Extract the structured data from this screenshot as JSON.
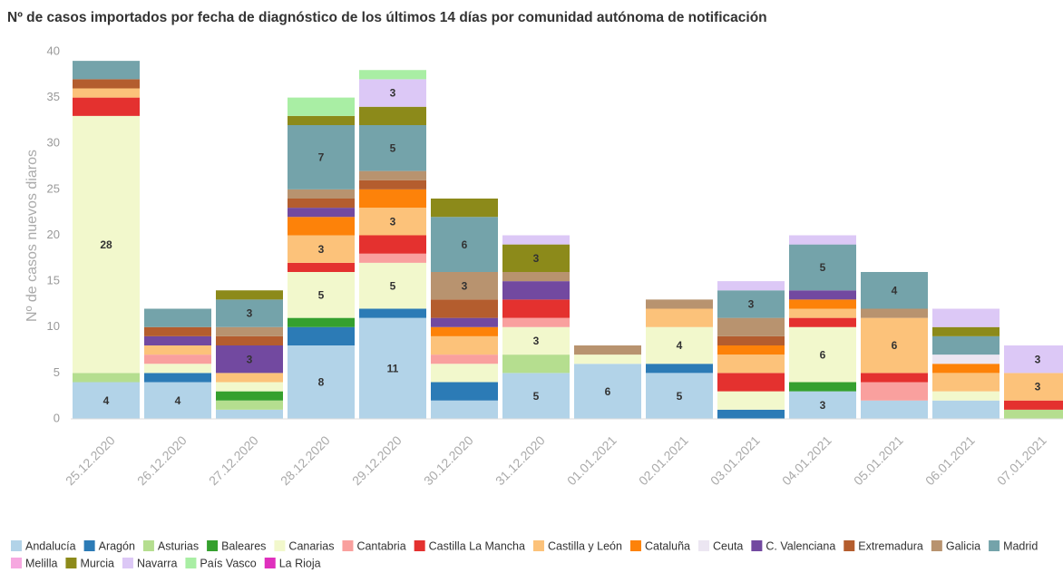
{
  "chart_data": {
    "type": "stacked_bar",
    "title": "Nº de casos importados por fecha de diagnóstico de los últimos 14 días por comunidad autónoma de notificación",
    "y_label": "Nº de casos nuevos diaros",
    "categories": [
      "25.12.2020",
      "26.12.2020",
      "27.12.2020",
      "28.12.2020",
      "29.12.2020",
      "30.12.2020",
      "31.12.2020",
      "01.01.2021",
      "02.01.2021",
      "03.01.2021",
      "04.01.2021",
      "05.01.2021",
      "06.01.2021",
      "07.01.2021"
    ],
    "ylim": [
      0,
      40
    ],
    "yticks": [
      0,
      5,
      10,
      15,
      20,
      25,
      30,
      35,
      40
    ],
    "grid": false,
    "legend": "bottom",
    "series": [
      {
        "name": "Andalucía",
        "color": "#b2d3e8",
        "values": [
          4,
          4,
          1,
          8,
          11,
          2,
          5,
          6,
          5,
          0,
          3,
          2,
          2,
          0
        ]
      },
      {
        "name": "Aragón",
        "color": "#2c7bb6",
        "values": [
          0,
          1,
          0,
          2,
          1,
          2,
          0,
          0,
          1,
          1,
          0,
          0,
          0,
          0
        ]
      },
      {
        "name": "Asturias",
        "color": "#b5de8f",
        "values": [
          1,
          0,
          1,
          0,
          0,
          0,
          2,
          0,
          0,
          0,
          0,
          0,
          0,
          1
        ]
      },
      {
        "name": "Baleares",
        "color": "#35a02e",
        "values": [
          0,
          0,
          1,
          1,
          0,
          0,
          0,
          0,
          0,
          0,
          1,
          0,
          0,
          0
        ]
      },
      {
        "name": "Canarias",
        "color": "#f2f8cc",
        "values": [
          28,
          1,
          1,
          5,
          5,
          2,
          3,
          1,
          4,
          2,
          6,
          0,
          1,
          0
        ]
      },
      {
        "name": "Cantabria",
        "color": "#f9a09e",
        "values": [
          0,
          1,
          0,
          0,
          1,
          1,
          1,
          0,
          0,
          0,
          0,
          2,
          0,
          0
        ]
      },
      {
        "name": "Castilla La Mancha",
        "color": "#e4312f",
        "values": [
          2,
          0,
          0,
          1,
          2,
          0,
          2,
          0,
          0,
          2,
          1,
          1,
          0,
          1
        ]
      },
      {
        "name": "Castilla y León",
        "color": "#fcc27a",
        "values": [
          1,
          1,
          1,
          3,
          3,
          2,
          0,
          0,
          2,
          2,
          1,
          6,
          2,
          3
        ]
      },
      {
        "name": "Cataluña",
        "color": "#fd8209",
        "values": [
          0,
          0,
          0,
          2,
          2,
          1,
          0,
          0,
          0,
          1,
          1,
          0,
          1,
          0
        ]
      },
      {
        "name": "Ceuta",
        "color": "#ece6f2",
        "values": [
          0,
          0,
          0,
          0,
          0,
          0,
          0,
          0,
          0,
          0,
          0,
          0,
          1,
          0
        ]
      },
      {
        "name": "C. Valenciana",
        "color": "#7249a0",
        "values": [
          0,
          1,
          3,
          1,
          0,
          1,
          2,
          0,
          0,
          0,
          1,
          0,
          0,
          0
        ]
      },
      {
        "name": "Extremadura",
        "color": "#b45d2e",
        "values": [
          1,
          1,
          1,
          1,
          1,
          2,
          0,
          0,
          0,
          1,
          0,
          0,
          0,
          0
        ]
      },
      {
        "name": "Galicia",
        "color": "#b8936f",
        "values": [
          0,
          0,
          1,
          1,
          1,
          3,
          1,
          1,
          1,
          2,
          0,
          1,
          0,
          0
        ]
      },
      {
        "name": "Madrid",
        "color": "#74a3aa",
        "values": [
          2,
          2,
          3,
          7,
          5,
          6,
          0,
          0,
          0,
          3,
          5,
          4,
          2,
          0
        ]
      },
      {
        "name": "Melilla",
        "color": "#f6a8e0",
        "values": [
          0,
          0,
          0,
          0,
          0,
          0,
          0,
          0,
          0,
          0,
          0,
          0,
          0,
          0
        ]
      },
      {
        "name": "Murcia",
        "color": "#8c8a1a",
        "values": [
          0,
          0,
          1,
          1,
          2,
          2,
          3,
          0,
          0,
          0,
          0,
          0,
          1,
          0
        ]
      },
      {
        "name": "Navarra",
        "color": "#dcc8f6",
        "values": [
          0,
          0,
          0,
          0,
          3,
          0,
          1,
          0,
          0,
          1,
          1,
          0,
          2,
          3
        ]
      },
      {
        "name": "País Vasco",
        "color": "#a9eea4",
        "values": [
          0,
          0,
          0,
          2,
          1,
          0,
          0,
          0,
          0,
          0,
          0,
          0,
          0,
          0
        ]
      },
      {
        "name": "La Rioja",
        "color": "#df30bd",
        "values": [
          0,
          0,
          0,
          0,
          0,
          0,
          0,
          0,
          0,
          0,
          0,
          0,
          0,
          0
        ]
      }
    ]
  }
}
